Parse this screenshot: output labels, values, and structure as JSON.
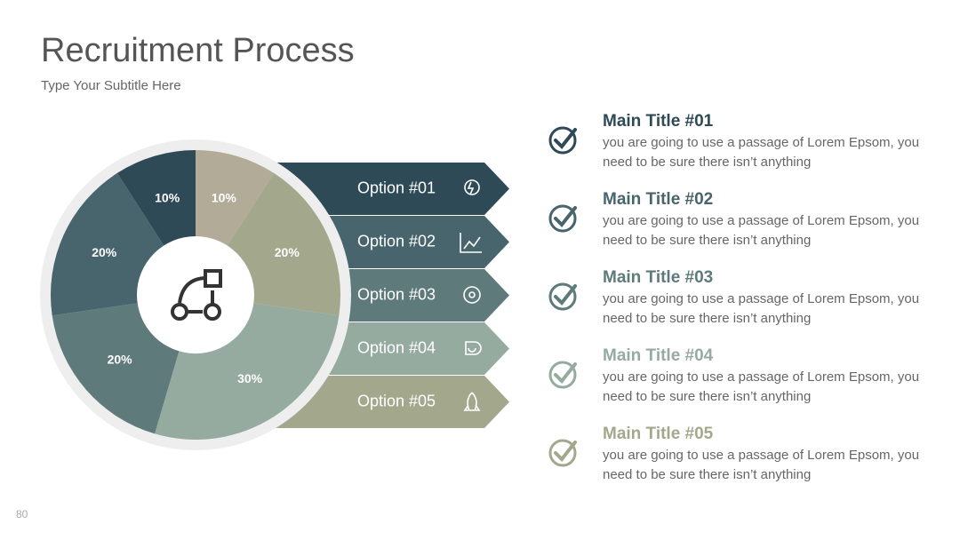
{
  "header": {
    "title": "Recruitment Process",
    "subtitle": "Type Your Subtitle Here"
  },
  "chart_data": {
    "type": "pie",
    "values": [
      10,
      20,
      30,
      20,
      20,
      10
    ],
    "value_labels": [
      "10%",
      "20%",
      "30%",
      "20%",
      "20%",
      "10%"
    ],
    "colors": [
      "#b1ab97",
      "#a3a88d",
      "#95aba0",
      "#5f7a7b",
      "#48646c",
      "#2e4a56"
    ]
  },
  "options": [
    {
      "label": "Option #01",
      "color": "#2e4a56"
    },
    {
      "label": "Option #02",
      "color": "#48646c"
    },
    {
      "label": "Option #03",
      "color": "#5f7a7b"
    },
    {
      "label": "Option #04",
      "color": "#95aba0"
    },
    {
      "label": "Option #05",
      "color": "#a3a88d"
    }
  ],
  "items": [
    {
      "title": "Main Title #01",
      "lines": [
        "you are going to use a passage of Lorem Epsom, you",
        "need to be sure there isn’t anything"
      ]
    },
    {
      "title": "Main Title #02",
      "lines": [
        "you are going to use a passage of Lorem Epsom, you",
        "need to be sure there isn’t anything"
      ]
    },
    {
      "title": "Main Title #03",
      "lines": [
        "you are going to use a passage of Lorem Epsom, you",
        "need to be sure there isn’t anything"
      ]
    },
    {
      "title": "Main Title #04",
      "lines": [
        "you are going to use a passage of Lorem Epsom, you",
        "need to be sure there isn’t anything"
      ]
    },
    {
      "title": "Main Title #05",
      "lines": [
        "you are going to use a passage of Lorem Epsom, you",
        "need to be sure there isn’t anything"
      ]
    }
  ],
  "page_number": "80"
}
